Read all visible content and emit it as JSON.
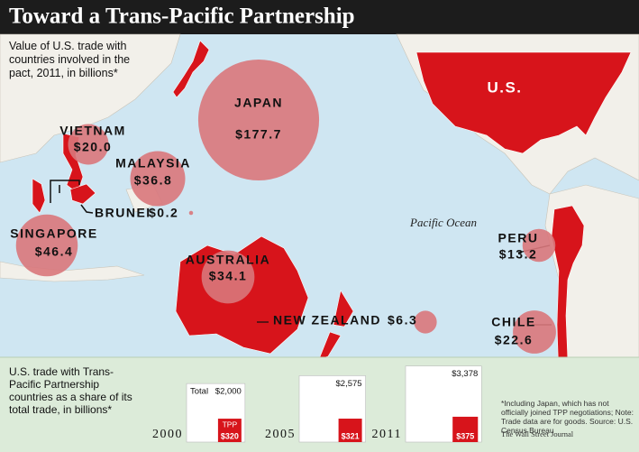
{
  "title": "Toward a Trans-Pacific Partnership",
  "map": {
    "subtitle": "Value of U.S. trade with countries involved in the pact, 2011, in billions*",
    "us_label": "U.S.",
    "ocean_label": "Pacific Ocean",
    "bubble_color": "#d9777b",
    "land_color": "#d7141b",
    "countries": [
      {
        "name": "JAPAN",
        "value": 177.7,
        "value_label": "$177.7"
      },
      {
        "name": "VIETNAM",
        "value": 20.0,
        "value_label": "$20.0"
      },
      {
        "name": "MALAYSIA",
        "value": 36.8,
        "value_label": "$36.8"
      },
      {
        "name": "BRUNEI",
        "value": 0.2,
        "value_label": "$0.2"
      },
      {
        "name": "SINGAPORE",
        "value": 46.4,
        "value_label": "$46.4"
      },
      {
        "name": "AUSTRALIA",
        "value": 34.1,
        "value_label": "$34.1"
      },
      {
        "name": "NEW ZEALAND",
        "value": 6.3,
        "value_label": "$6.3"
      },
      {
        "name": "PERU",
        "value": 13.2,
        "value_label": "$13.2"
      },
      {
        "name": "CHILE",
        "value": 22.6,
        "value_label": "$22.6"
      }
    ]
  },
  "share": {
    "subtitle": "U.S. trade with Trans-Pacific Partnership countries as a share of its total trade, in billions*",
    "total_label": "Total",
    "tpp_label": "TPP",
    "tpp_color": "#d7141b",
    "years": [
      {
        "year": "2000",
        "total": 2000,
        "total_label": "$2,000",
        "tpp": 320,
        "tpp_label": "$320"
      },
      {
        "year": "2005",
        "total": 2575,
        "total_label": "$2,575",
        "tpp": 321,
        "tpp_label": "$321"
      },
      {
        "year": "2011",
        "total": 3378,
        "total_label": "$3,378",
        "tpp": 375,
        "tpp_label": "$375"
      }
    ]
  },
  "footnote": "*Including Japan, which has not officially joined TPP negotiations; Note: Trade data are for goods. Source: U.S. Census Bureau",
  "source": "The Wall Street Journal"
}
